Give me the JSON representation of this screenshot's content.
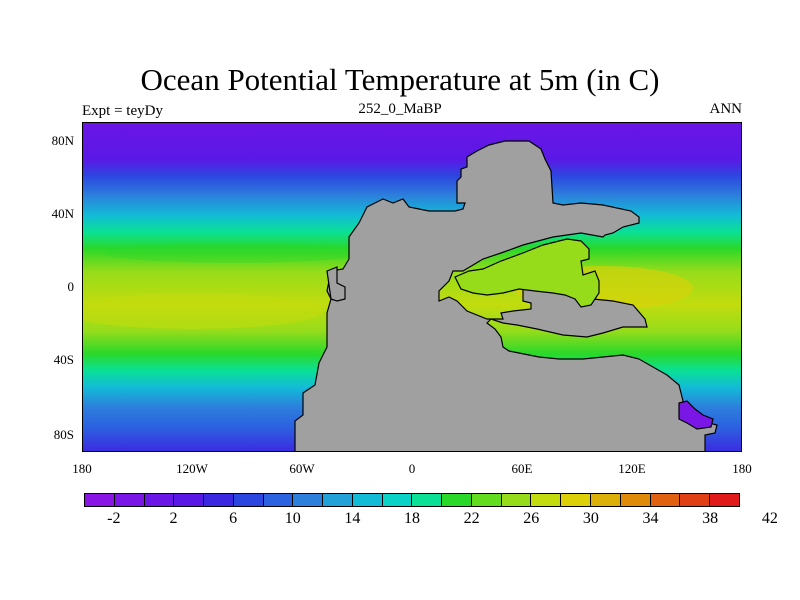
{
  "title": "Ocean Potential Temperature at 5m (in C)",
  "subtitle_left": "Expt = teyDy",
  "subtitle_center": "252_0_MaBP",
  "subtitle_right": "ANN",
  "lat_labels": [
    "80N",
    "40N",
    "0",
    "40S",
    "80S"
  ],
  "lon_labels": [
    "180",
    "120W",
    "60W",
    "0",
    "60E",
    "120E",
    "180"
  ],
  "colorbar": {
    "colors": [
      "#8a16e6",
      "#7a16e6",
      "#6a16e6",
      "#5a18e6",
      "#3c28e0",
      "#2c46e0",
      "#2c62e0",
      "#2c80dc",
      "#22a0d8",
      "#12bcd6",
      "#0ad2c6",
      "#0ae096",
      "#2ad82a",
      "#62dc1e",
      "#96dc1a",
      "#c2dc0e",
      "#dcd008",
      "#dcb008",
      "#e08a0a",
      "#e06210",
      "#e03e14",
      "#e01a1a"
    ],
    "labels": [
      "-2",
      "2",
      "6",
      "10",
      "14",
      "18",
      "22",
      "26",
      "30",
      "34",
      "38",
      "42"
    ]
  }
}
